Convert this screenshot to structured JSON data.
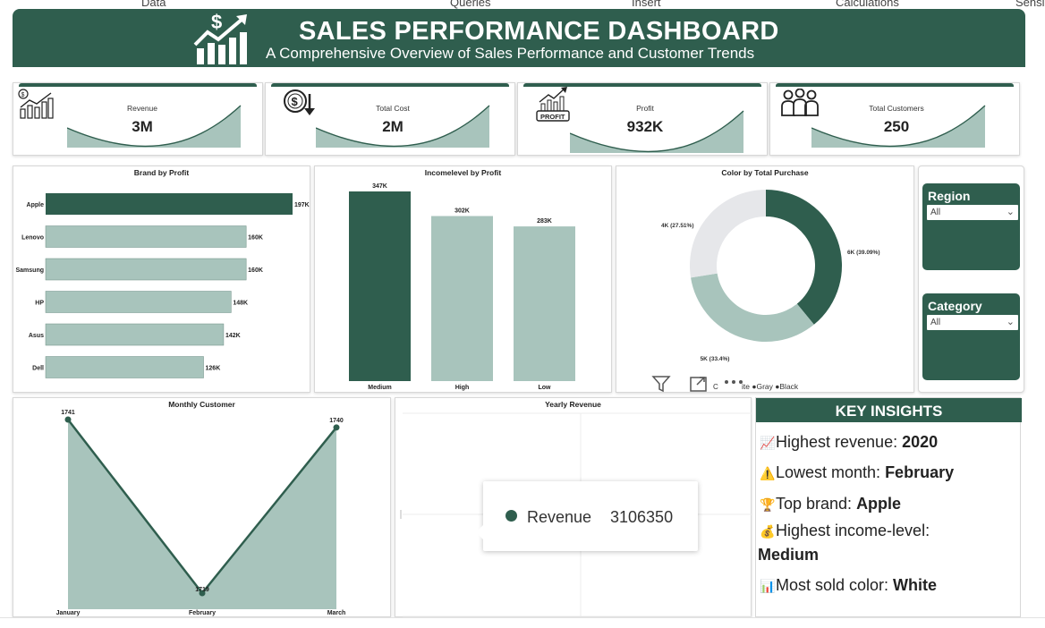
{
  "ribbon": {
    "tabs": [
      "Data",
      "Queries",
      "Insert",
      "Calculations",
      "Sensi"
    ]
  },
  "header": {
    "title": "SALES PERFORMANCE DASHBOARD",
    "subtitle": "A Comprehensive Overview of Sales Performance and Customer Trends",
    "logo_icon": "money-growth-chart-icon"
  },
  "colors": {
    "primary": "#2f5e4e",
    "light": "#a8c4bc",
    "gray": "#e6e7ea"
  },
  "kpis": [
    {
      "label": "Revenue",
      "value": "3M",
      "icon": "revenue-chart-icon"
    },
    {
      "label": "Total Cost",
      "value": "2M",
      "icon": "cost-coin-icon"
    },
    {
      "label": "Profit",
      "value": "932K",
      "icon": "profit-chart-icon",
      "icon_text": "PROFIT"
    },
    {
      "label": "Total Customers",
      "value": "250",
      "icon": "customers-group-icon"
    }
  ],
  "slicers": {
    "region": {
      "title": "Region",
      "value": "All"
    },
    "category": {
      "title": "Category",
      "value": "All"
    }
  },
  "insights": {
    "title": "KEY INSIGHTS",
    "items": [
      {
        "icon": "chart-up-icon",
        "glyph": "📈",
        "label": "Highest revenue: ",
        "value": "2020"
      },
      {
        "icon": "warning-icon",
        "glyph": "⚠️",
        "label": "Lowest month: ",
        "value": "February"
      },
      {
        "icon": "trophy-icon",
        "glyph": "🏆",
        "label": "Top brand: ",
        "value": "Apple"
      },
      {
        "icon": "money-bag-icon",
        "glyph": "💰",
        "label": "Highest income-level:",
        "value": "Medium"
      },
      {
        "icon": "bar-chart-icon",
        "glyph": "📊",
        "label": "Most sold color: ",
        "value": "White"
      }
    ]
  },
  "tooltip": {
    "label": "Revenue",
    "value": "3106350"
  },
  "chart_data": [
    {
      "id": "brand",
      "type": "bar",
      "orientation": "horizontal",
      "title": "Brand by Profit",
      "categories": [
        "Apple",
        "Lenovo",
        "Samsung",
        "HP",
        "Asus",
        "Dell"
      ],
      "values": [
        197,
        160,
        160,
        148,
        142,
        126
      ],
      "labels": [
        "197K",
        "160K",
        "160K",
        "148K",
        "142K",
        "126K"
      ],
      "highlight": "Apple"
    },
    {
      "id": "income",
      "type": "bar",
      "title": "Incomelevel by Profit",
      "categories": [
        "Medium",
        "High",
        "Low"
      ],
      "values": [
        347,
        302,
        283
      ],
      "labels": [
        "347K",
        "302K",
        "283K"
      ],
      "highlight": "Medium"
    },
    {
      "id": "color",
      "type": "pie",
      "style": "donut",
      "title": "Color by Total Purchase",
      "slices": [
        {
          "name": "White",
          "value": 39.09,
          "label": "6K (39.09%)",
          "color": "#2f5e4e"
        },
        {
          "name": "Gray",
          "value": 33.4,
          "label": "5K (33.4%)",
          "color": "#a8c4bc"
        },
        {
          "name": "Black",
          "value": 27.51,
          "label": "4K (27.51%)",
          "color": "#e6e7ea"
        }
      ],
      "legend_visible": "ite ●Gray ●Black",
      "legend_partial_glyph": "C"
    },
    {
      "id": "monthly",
      "type": "area",
      "title": "Monthly Customer",
      "categories": [
        "January",
        "February",
        "March"
      ],
      "values": [
        1741,
        1719,
        1740
      ],
      "labels": [
        "1741",
        "1719",
        "1740"
      ]
    },
    {
      "id": "yearly",
      "type": "line",
      "title": "Yearly Revenue"
    }
  ]
}
